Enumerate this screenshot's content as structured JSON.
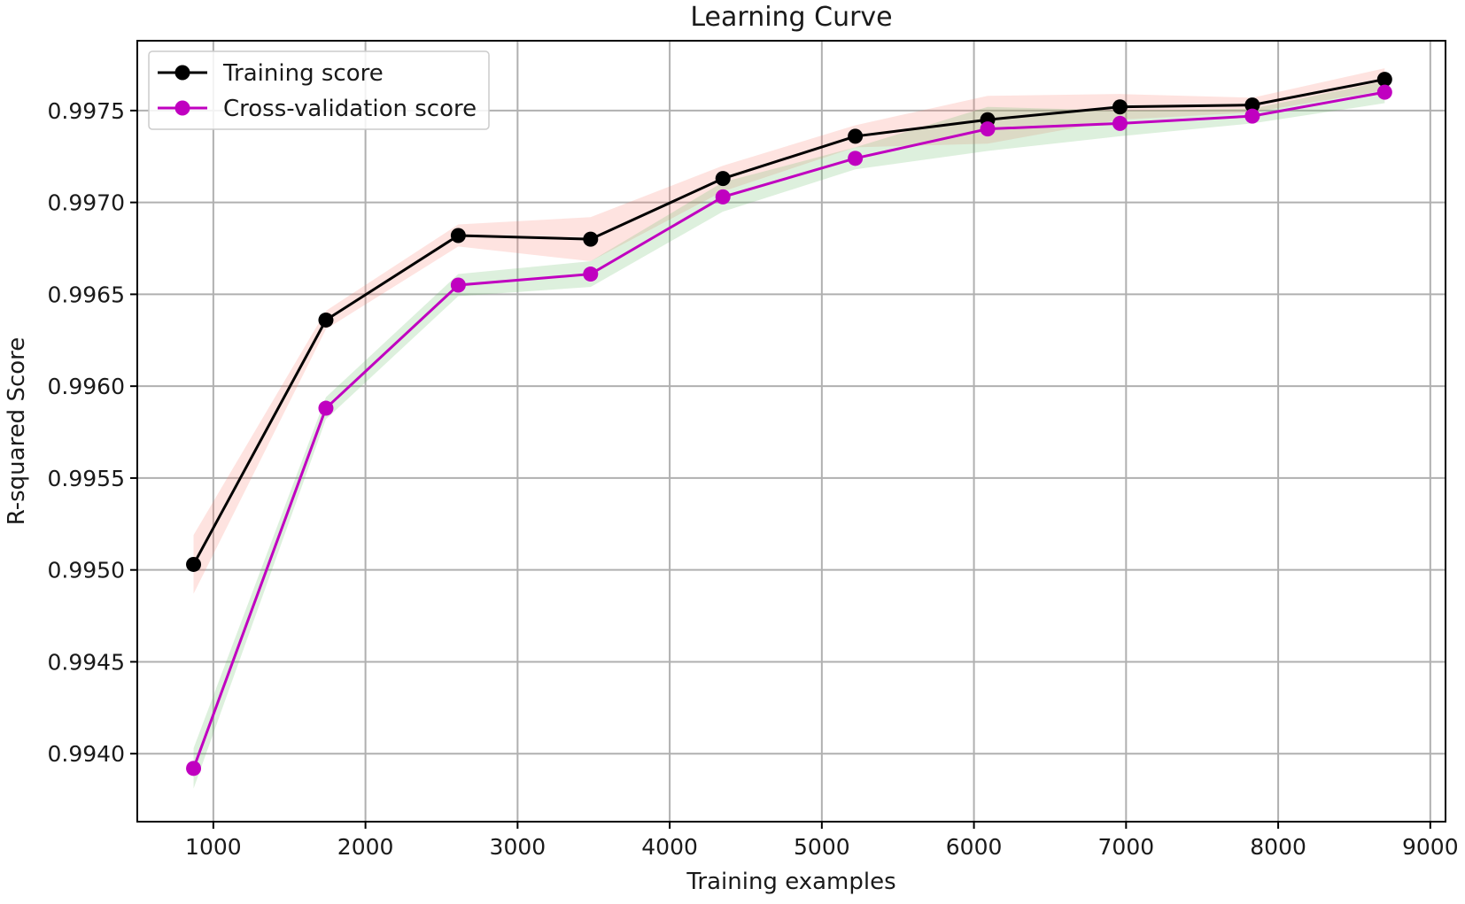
{
  "chart_data": {
    "type": "line",
    "title": "Learning Curve",
    "xlabel": "Training examples",
    "ylabel": "R-squared Score",
    "xlim": [
      500,
      9100
    ],
    "ylim": [
      0.99363,
      0.99788
    ],
    "xticks": [
      1000,
      2000,
      3000,
      4000,
      5000,
      6000,
      7000,
      8000,
      9000
    ],
    "xtick_labels": [
      "1000",
      "2000",
      "3000",
      "4000",
      "5000",
      "6000",
      "7000",
      "8000",
      "9000"
    ],
    "yticks": [
      0.994,
      0.9945,
      0.995,
      0.9955,
      0.996,
      0.9965,
      0.997,
      0.9975
    ],
    "ytick_labels": [
      "0.9940",
      "0.9945",
      "0.9950",
      "0.9955",
      "0.9960",
      "0.9965",
      "0.9970",
      "0.9975"
    ],
    "grid": true,
    "legend_position": "top-left",
    "x": [
      870,
      1740,
      2610,
      3480,
      4350,
      5220,
      6090,
      6960,
      7830,
      8700
    ],
    "series": [
      {
        "name": "Training score",
        "color": "#000000",
        "band_color": "#fa8072",
        "marker": "circle",
        "values": [
          0.99503,
          0.99636,
          0.99682,
          0.9968,
          0.99713,
          0.99736,
          0.99745,
          0.99752,
          0.99753,
          0.99767
        ],
        "band_lower": [
          0.99487,
          0.99631,
          0.99676,
          0.99668,
          0.99706,
          0.9973,
          0.99732,
          0.99745,
          0.99749,
          0.99761
        ],
        "band_upper": [
          0.99519,
          0.99641,
          0.99688,
          0.99692,
          0.9972,
          0.99742,
          0.99758,
          0.99759,
          0.99757,
          0.99773
        ]
      },
      {
        "name": "Cross-validation score",
        "color": "#c000c0",
        "band_color": "#66bb66",
        "marker": "circle",
        "values": [
          0.99392,
          0.99588,
          0.99655,
          0.99661,
          0.99703,
          0.99724,
          0.9974,
          0.99743,
          0.99747,
          0.9976
        ],
        "band_lower": [
          0.99381,
          0.99582,
          0.99649,
          0.99654,
          0.99695,
          0.99718,
          0.99728,
          0.99736,
          0.99743,
          0.99754
        ],
        "band_upper": [
          0.99403,
          0.99594,
          0.99661,
          0.99668,
          0.99711,
          0.9973,
          0.99752,
          0.9975,
          0.99751,
          0.99766
        ]
      }
    ]
  }
}
